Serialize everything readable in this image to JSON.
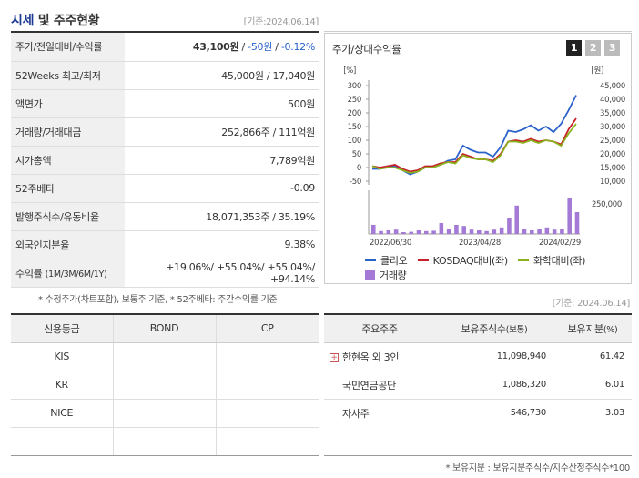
{
  "header": {
    "title": "시세",
    "title_sub": "및 주주현황",
    "date": "[기준:2024.06.14]"
  },
  "quote_rows": [
    {
      "label": "주가/전일대비/수익률",
      "v1": "43,100원",
      "sep1": " / ",
      "v2": "-50원",
      "sep2": " / ",
      "v3": "-0.12%"
    },
    {
      "label": "52Weeks 최고/최저",
      "value": "45,000원 / 17,040원"
    },
    {
      "label": "액면가",
      "value": "500원"
    },
    {
      "label": "거래량/거래대금",
      "value": "252,866주 / 111억원"
    },
    {
      "label": "시가총액",
      "value": "7,789억원"
    },
    {
      "label": "52주베타",
      "value": "-0.09"
    },
    {
      "label": "발행주식수/유동비율",
      "value": "18,071,353주 / 35.19%"
    },
    {
      "label": "외국인지분율",
      "value": "9.38%"
    }
  ],
  "returns_row": {
    "label": "수익률",
    "label_sub": "(1M/3M/6M/1Y)",
    "value": "+19.06%/ +55.04%/ +55.04%/ +94.14%"
  },
  "note1": "* 수정주가(차트포함), 보통주 기준, * 52주베타: 주간수익률 기준",
  "chart_panel": {
    "title": "주가/상대수익률",
    "pages": [
      "1",
      "2",
      "3"
    ],
    "date": "[기준: 2024.06.14]"
  },
  "chart_data": {
    "type": "line",
    "left_axis": {
      "unit": "[%]",
      "ticks": [
        "300",
        "250",
        "200",
        "150",
        "100",
        "50",
        "0",
        "-50"
      ],
      "ylim": [
        -50,
        300
      ]
    },
    "right_axis": {
      "unit": "[원]",
      "ticks": [
        "45,000",
        "40,000",
        "35,000",
        "30,000",
        "25,000",
        "20,000",
        "15,000",
        "10,000"
      ],
      "ylim": [
        10000,
        45000
      ]
    },
    "volume_axis": {
      "ticks": [
        "250,000"
      ]
    },
    "x_ticks": [
      "2022/06/30",
      "2023/04/28",
      "2024/02/29"
    ],
    "series": [
      {
        "name": "클리오",
        "color": "#2a62c9",
        "values": [
          -5,
          -5,
          0,
          5,
          -10,
          -25,
          -15,
          0,
          0,
          10,
          25,
          30,
          80,
          65,
          55,
          55,
          40,
          75,
          135,
          130,
          140,
          155,
          135,
          150,
          130,
          160,
          210,
          265
        ]
      },
      {
        "name": "KOSDAQ대비(좌)",
        "color": "#c8202a",
        "values": [
          5,
          0,
          5,
          10,
          -5,
          -15,
          -10,
          5,
          5,
          15,
          20,
          20,
          50,
          40,
          30,
          30,
          25,
          50,
          95,
          100,
          95,
          105,
          95,
          100,
          95,
          85,
          140,
          180
        ]
      },
      {
        "name": "화학대비(좌)",
        "color": "#8ab21d",
        "values": [
          5,
          -5,
          0,
          0,
          -10,
          -20,
          -15,
          0,
          0,
          10,
          20,
          15,
          45,
          35,
          30,
          30,
          20,
          45,
          95,
          95,
          90,
          100,
          90,
          100,
          95,
          80,
          125,
          160
        ]
      }
    ],
    "volume": {
      "name": "거래량",
      "color": "#a47ad6",
      "values": [
        0.25,
        0.08,
        0.1,
        0.12,
        0.05,
        0.06,
        0.1,
        0.08,
        0.09,
        0.3,
        0.15,
        0.25,
        0.22,
        0.12,
        0.1,
        0.08,
        0.12,
        0.18,
        0.45,
        0.78,
        0.15,
        0.1,
        0.15,
        0.18,
        0.12,
        0.15,
        1.0,
        0.6
      ]
    }
  },
  "credit_table": {
    "headers": [
      "신용등급",
      "BOND",
      "CP"
    ],
    "rows": [
      [
        "KIS",
        "",
        ""
      ],
      [
        "KR",
        "",
        ""
      ],
      [
        "NICE",
        "",
        ""
      ],
      [
        "",
        "",
        ""
      ]
    ]
  },
  "holders_table": {
    "headers": [
      "주요주주",
      "보유주식수",
      "(보통)",
      "보유지분",
      "(%)"
    ],
    "rows": [
      {
        "name": "한현옥 외 3인",
        "shares": "11,098,940",
        "pct": "61.42",
        "expand": "+"
      },
      {
        "name": "국민연금공단",
        "shares": "1,086,320",
        "pct": "6.01"
      },
      {
        "name": "자사주",
        "shares": "546,730",
        "pct": "3.03"
      }
    ]
  },
  "note2": "* 보유지분 : 보유지분주식수/지수산정주식수*100",
  "colors": {
    "title": "#1f3a93",
    "positive": "#e02020",
    "negative": "#2a62c9",
    "volume": "#a47ad6"
  }
}
